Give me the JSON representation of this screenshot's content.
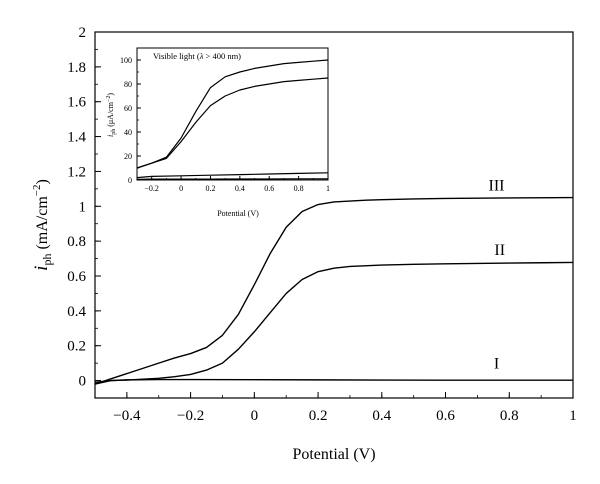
{
  "chart_data": [
    {
      "type": "line",
      "xlabel": "Potential (V)",
      "ylabel_main": "i",
      "ylabel_sub": "ph",
      "ylabel_unit": " (mA/cm",
      "ylabel_sup": "−2",
      "ylabel_close": ")",
      "xlim": [
        -0.5,
        1.0
      ],
      "ylim": [
        -0.1,
        2.0
      ],
      "xticks": [
        -0.4,
        -0.2,
        0,
        0.2,
        0.4,
        0.6,
        0.8,
        1
      ],
      "xtick_labels": [
        "−0.4",
        "−0.2",
        "0",
        "0.2",
        "0.4",
        "0.6",
        "0.8",
        "1"
      ],
      "yticks": [
        0,
        0.2,
        0.4,
        0.6,
        0.8,
        1,
        1.2,
        1.4,
        1.6,
        1.8,
        2
      ],
      "ytick_labels": [
        "0",
        "0.2",
        "0.4",
        "0.6",
        "0.8",
        "1",
        "1.2",
        "1.4",
        "1.6",
        "1.8",
        "2"
      ],
      "series": [
        {
          "name": "I",
          "x": [
            -0.5,
            -0.45,
            -0.4,
            -0.3,
            -0.2,
            0,
            0.2,
            0.4,
            0.6,
            0.8,
            1.0
          ],
          "y": [
            -0.02,
            0.0,
            0.004,
            0.006,
            0.006,
            0.005,
            0.004,
            0.003,
            0.002,
            0.002,
            0.002
          ]
        },
        {
          "name": "II",
          "x": [
            -0.5,
            -0.45,
            -0.4,
            -0.35,
            -0.3,
            -0.25,
            -0.2,
            -0.15,
            -0.1,
            -0.05,
            0,
            0.05,
            0.1,
            0.15,
            0.2,
            0.25,
            0.3,
            0.4,
            0.5,
            0.6,
            0.7,
            0.8,
            0.9,
            1.0
          ],
          "y": [
            -0.01,
            0.0,
            0.003,
            0.008,
            0.013,
            0.022,
            0.035,
            0.06,
            0.1,
            0.18,
            0.28,
            0.39,
            0.5,
            0.58,
            0.625,
            0.645,
            0.655,
            0.663,
            0.667,
            0.67,
            0.672,
            0.674,
            0.676,
            0.678
          ]
        },
        {
          "name": "III",
          "x": [
            -0.5,
            -0.45,
            -0.4,
            -0.35,
            -0.3,
            -0.25,
            -0.2,
            -0.15,
            -0.1,
            -0.05,
            0,
            0.05,
            0.1,
            0.15,
            0.2,
            0.25,
            0.3,
            0.35,
            0.4,
            0.5,
            0.6,
            0.8,
            1.0
          ],
          "y": [
            -0.02,
            0.01,
            0.04,
            0.07,
            0.1,
            0.13,
            0.155,
            0.19,
            0.26,
            0.38,
            0.55,
            0.73,
            0.88,
            0.97,
            1.01,
            1.025,
            1.03,
            1.035,
            1.038,
            1.042,
            1.045,
            1.048,
            1.05
          ]
        }
      ],
      "annotations": [
        {
          "text": "I",
          "x": 0.76,
          "y": 0.07
        },
        {
          "text": "II",
          "x": 0.77,
          "y": 0.72
        },
        {
          "text": "III",
          "x": 0.76,
          "y": 1.09
        }
      ]
    },
    {
      "type": "line",
      "title_text": "Visible light (",
      "title_lambda": "λ",
      "title_rest": " > 400 nm)",
      "xlabel": "Potential (V)",
      "ylabel": "i",
      "ylabel_sub": "ph",
      "ylabel_unit": " (μA/cm",
      "ylabel_sup": "−2",
      "ylabel_close": ")",
      "xlim": [
        -0.3,
        1.0
      ],
      "ylim": [
        0,
        110
      ],
      "xticks": [
        -0.2,
        0,
        0.2,
        0.4,
        0.6,
        0.8,
        1
      ],
      "xtick_labels": [
        "−0.2",
        "0",
        "0.2",
        "0.4",
        "0.6",
        "0.8",
        "1"
      ],
      "yticks": [
        0,
        20,
        40,
        60,
        80,
        100
      ],
      "ytick_labels": [
        "0",
        "20",
        "40",
        "60",
        "80",
        "100"
      ],
      "series": [
        {
          "x": [
            -0.3,
            -0.2,
            -0.1,
            0,
            0.1,
            0.2,
            0.3,
            0.4,
            0.5,
            0.6,
            0.7,
            0.8,
            0.9,
            1.0
          ],
          "y": [
            10,
            14,
            18,
            32,
            48,
            62,
            70,
            75,
            78,
            80,
            82,
            83,
            84,
            85
          ]
        },
        {
          "x": [
            -0.3,
            -0.2,
            -0.1,
            0,
            0.1,
            0.2,
            0.3,
            0.4,
            0.5,
            0.6,
            0.7,
            0.8,
            0.9,
            1.0
          ],
          "y": [
            10,
            14,
            19,
            35,
            57,
            77,
            86,
            90,
            93,
            95,
            97,
            98,
            99,
            100
          ]
        },
        {
          "x": [
            -0.3,
            -0.2,
            0,
            0.2,
            0.4,
            0.6,
            0.8,
            1.0
          ],
          "y": [
            2,
            3,
            3.5,
            4,
            4.5,
            5,
            5.5,
            6
          ]
        },
        {
          "x": [
            -0.3,
            -0.2,
            0,
            0.2,
            0.4,
            0.6,
            0.8,
            1.0
          ],
          "y": [
            0.5,
            0.7,
            0.8,
            0.8,
            0.9,
            0.9,
            1.0,
            1.0
          ]
        }
      ]
    }
  ]
}
